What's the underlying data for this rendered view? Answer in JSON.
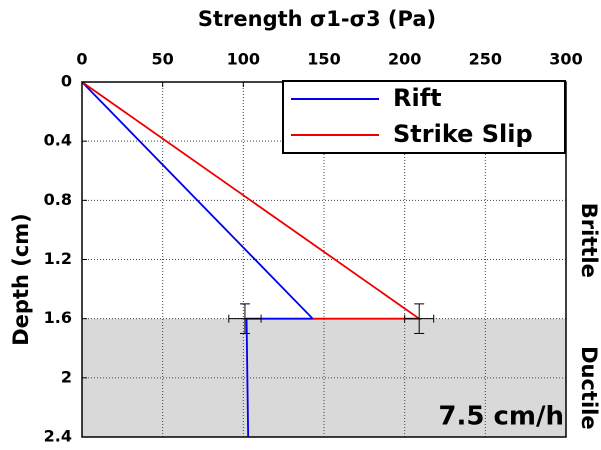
{
  "chart_data": {
    "type": "line",
    "title": "Strength σ1-σ3 (Pa)",
    "ylabel": "Depth (cm)",
    "annotations": [
      "Brittle",
      "Ductile",
      "7.5 cm/h"
    ],
    "xlim": [
      0,
      300
    ],
    "xticks": [
      0,
      50,
      100,
      150,
      200,
      250,
      300
    ],
    "ylim": [
      0,
      2.4
    ],
    "yticks": [
      0,
      0.4,
      0.8,
      1.2,
      1.6,
      2,
      2.4
    ],
    "y_inverted": true,
    "x_axis_top": true,
    "grid": true,
    "legend": "upper right",
    "shaded_region": {
      "ymin": 1.6,
      "ymax": 2.4,
      "color": "#d9d9d9"
    },
    "series": [
      {
        "name": "Rift",
        "color": "#0000ee",
        "x": [
          0,
          143,
          102,
          103
        ],
        "values": [
          0,
          1.6,
          1.6,
          2.4
        ]
      },
      {
        "name": "Strike Slip",
        "color": "#ee0000",
        "x": [
          0,
          209,
          143
        ],
        "values": [
          0,
          1.6,
          1.6
        ]
      }
    ],
    "error_bars": [
      {
        "x": 101,
        "y": 1.6,
        "xerr": 10,
        "yerr": 0.1,
        "color": "#000000"
      },
      {
        "x": 209,
        "y": 1.6,
        "xerr": 9,
        "yerr": 0.1,
        "color": "#000000"
      }
    ]
  }
}
